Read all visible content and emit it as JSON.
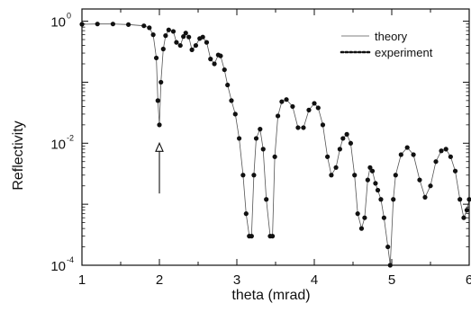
{
  "chart_data": {
    "type": "line",
    "title": "",
    "xlabel": "theta (mrad)",
    "ylabel": "Reflectivity",
    "xlim": [
      1,
      6
    ],
    "ylim": [
      0.0001,
      2
    ],
    "y_scale": "log",
    "grid": false,
    "legend_position": "top-right",
    "x_ticks": [
      {
        "value": 1,
        "label": "1"
      },
      {
        "value": 2,
        "label": "2"
      },
      {
        "value": 3,
        "label": "3"
      },
      {
        "value": 4,
        "label": "4"
      },
      {
        "value": 5,
        "label": "5"
      },
      {
        "value": 6,
        "label": "6"
      }
    ],
    "y_ticks": [
      {
        "value": 1,
        "base": "10",
        "exp": "0"
      },
      {
        "value": 0.01,
        "base": "10",
        "exp": "-2"
      },
      {
        "value": 0.0001,
        "base": "10",
        "exp": "-4"
      }
    ],
    "series": [
      {
        "name": "theory",
        "style": "thin-line",
        "color": "#555555",
        "x": [
          1.0,
          1.2,
          1.4,
          1.6,
          1.8,
          1.87,
          1.92,
          1.96,
          1.98,
          2.0,
          2.02,
          2.05,
          2.08,
          2.12,
          2.18,
          2.22,
          2.27,
          2.31,
          2.34,
          2.38,
          2.42,
          2.47,
          2.52,
          2.56,
          2.61,
          2.66,
          2.71,
          2.76,
          2.79,
          2.84,
          2.88,
          2.93,
          2.98,
          3.03,
          3.08,
          3.12,
          3.16,
          3.19,
          3.22,
          3.25,
          3.3,
          3.34,
          3.38,
          3.43,
          3.46,
          3.49,
          3.53,
          3.58,
          3.64,
          3.72,
          3.79,
          3.86,
          3.93,
          4.0,
          4.05,
          4.11,
          4.17,
          4.22,
          4.28,
          4.33,
          4.37,
          4.42,
          4.47,
          4.52,
          4.56,
          4.61,
          4.65,
          4.69,
          4.72,
          4.75,
          4.79,
          4.82,
          4.86,
          4.9,
          4.95,
          4.98,
          5.02,
          5.05,
          5.12,
          5.2,
          5.28,
          5.36,
          5.43,
          5.5,
          5.57,
          5.64,
          5.7,
          5.76,
          5.82,
          5.88,
          5.93,
          5.97,
          6.0
        ],
        "y": [
          0.89,
          0.9,
          0.9,
          0.88,
          0.84,
          0.78,
          0.6,
          0.25,
          0.05,
          0.02,
          0.1,
          0.35,
          0.58,
          0.72,
          0.68,
          0.45,
          0.4,
          0.56,
          0.64,
          0.55,
          0.34,
          0.4,
          0.52,
          0.55,
          0.45,
          0.24,
          0.2,
          0.28,
          0.27,
          0.16,
          0.09,
          0.05,
          0.03,
          0.012,
          0.003,
          0.0007,
          0.0003,
          0.0003,
          0.003,
          0.012,
          0.017,
          0.008,
          0.0012,
          0.0003,
          0.0003,
          0.006,
          0.028,
          0.048,
          0.052,
          0.04,
          0.018,
          0.018,
          0.035,
          0.045,
          0.038,
          0.02,
          0.006,
          0.003,
          0.004,
          0.008,
          0.012,
          0.014,
          0.01,
          0.003,
          0.0007,
          0.0004,
          0.0006,
          0.0025,
          0.004,
          0.0035,
          0.0022,
          0.0017,
          0.0012,
          0.0006,
          0.0002,
          0.0001,
          0.0012,
          0.003,
          0.0065,
          0.0085,
          0.0065,
          0.0025,
          0.0013,
          0.002,
          0.005,
          0.0075,
          0.008,
          0.006,
          0.0035,
          0.0012,
          0.0006,
          0.0008,
          0.0012
        ]
      },
      {
        "name": "experiment",
        "style": "dots",
        "color": "#111111",
        "x": [
          1.0,
          1.2,
          1.4,
          1.6,
          1.8,
          1.87,
          1.92,
          1.96,
          1.98,
          2.0,
          2.02,
          2.05,
          2.08,
          2.12,
          2.18,
          2.22,
          2.27,
          2.31,
          2.34,
          2.38,
          2.42,
          2.47,
          2.52,
          2.56,
          2.61,
          2.66,
          2.71,
          2.76,
          2.79,
          2.84,
          2.88,
          2.93,
          2.98,
          3.03,
          3.08,
          3.12,
          3.16,
          3.19,
          3.22,
          3.25,
          3.3,
          3.34,
          3.38,
          3.43,
          3.46,
          3.49,
          3.53,
          3.58,
          3.64,
          3.72,
          3.79,
          3.86,
          3.93,
          4.0,
          4.05,
          4.11,
          4.17,
          4.22,
          4.28,
          4.33,
          4.37,
          4.42,
          4.47,
          4.52,
          4.56,
          4.61,
          4.65,
          4.69,
          4.72,
          4.75,
          4.79,
          4.82,
          4.86,
          4.9,
          4.95,
          4.98,
          5.02,
          5.05,
          5.12,
          5.2,
          5.28,
          5.36,
          5.43,
          5.5,
          5.57,
          5.64,
          5.7,
          5.76,
          5.82,
          5.88,
          5.93,
          5.97,
          6.0
        ],
        "y": [
          0.89,
          0.9,
          0.9,
          0.88,
          0.84,
          0.78,
          0.6,
          0.25,
          0.05,
          0.02,
          0.1,
          0.35,
          0.58,
          0.72,
          0.68,
          0.45,
          0.4,
          0.56,
          0.64,
          0.55,
          0.34,
          0.4,
          0.52,
          0.55,
          0.45,
          0.24,
          0.2,
          0.28,
          0.27,
          0.16,
          0.09,
          0.05,
          0.03,
          0.012,
          0.003,
          0.0007,
          0.0003,
          0.0003,
          0.003,
          0.012,
          0.017,
          0.008,
          0.0012,
          0.0003,
          0.0003,
          0.006,
          0.028,
          0.048,
          0.052,
          0.04,
          0.018,
          0.018,
          0.035,
          0.045,
          0.038,
          0.02,
          0.006,
          0.003,
          0.004,
          0.008,
          0.012,
          0.014,
          0.01,
          0.003,
          0.0007,
          0.0004,
          0.0006,
          0.0025,
          0.004,
          0.0035,
          0.0022,
          0.0017,
          0.0012,
          0.0006,
          0.0002,
          0.0001,
          0.0012,
          0.003,
          0.0065,
          0.0085,
          0.0065,
          0.0025,
          0.0013,
          0.002,
          0.005,
          0.0075,
          0.008,
          0.006,
          0.0035,
          0.0012,
          0.0006,
          0.0008,
          0.0012
        ]
      }
    ],
    "annotations": [
      {
        "type": "arrow",
        "x": 2.0,
        "y_from": 0.0015,
        "y_to": 0.01,
        "direction": "up"
      }
    ]
  }
}
